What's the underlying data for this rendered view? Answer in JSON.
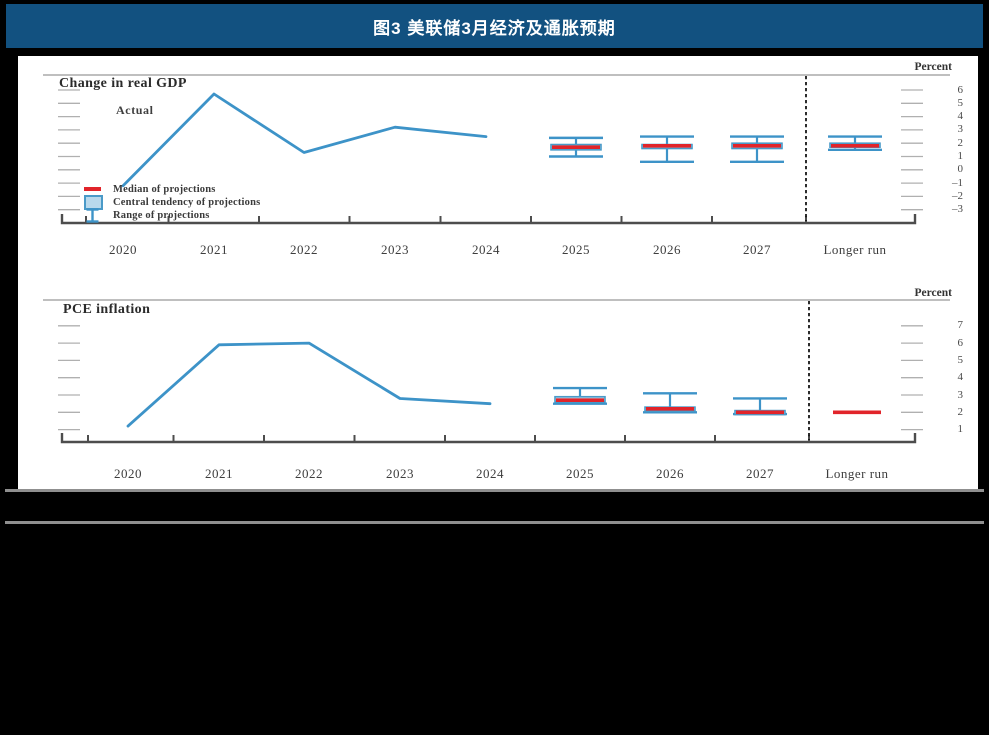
{
  "title_bar": {
    "text": "图3 美联储3月经济及通胀预期",
    "bg_color": "#125180",
    "text_color": "#ffffff"
  },
  "colors": {
    "actual_line": "#3d93c8",
    "central_tendency_fill": "#b9d9ec",
    "central_tendency_border": "#4a9ac8",
    "median": "#e1242a",
    "frame_line": "#999999",
    "axis": "#4d4d4d",
    "tick_dash": "#b0b0b0",
    "separator": "#161616",
    "rule": "#8f8f8f"
  },
  "chart_data": [
    {
      "type": "line+boxwhisker",
      "panel_title": "Change in real GDP",
      "unit_label": "Percent",
      "actual_label": "Actual",
      "x_categories": [
        "2020",
        "2021",
        "2022",
        "2023",
        "2024",
        "2025",
        "2026",
        "2027",
        "Longer run"
      ],
      "actual_series": {
        "name": "Actual",
        "x": [
          "2020",
          "2021",
          "2022",
          "2023",
          "2024"
        ],
        "values": [
          -1.2,
          5.7,
          1.3,
          3.2,
          2.5
        ]
      },
      "projections": [
        {
          "period": "2025",
          "median": 1.7,
          "central_tendency": [
            1.5,
            1.9
          ],
          "range": [
            1.0,
            2.4
          ]
        },
        {
          "period": "2026",
          "median": 1.8,
          "central_tendency": [
            1.6,
            1.9
          ],
          "range": [
            0.6,
            2.5
          ]
        },
        {
          "period": "2027",
          "median": 1.8,
          "central_tendency": [
            1.6,
            2.0
          ],
          "range": [
            0.6,
            2.5
          ]
        },
        {
          "period": "Longer run",
          "median": 1.8,
          "central_tendency": [
            1.7,
            2.0
          ],
          "range": [
            1.5,
            2.5
          ]
        }
      ],
      "y_tick_labels": [
        "6",
        "5",
        "4",
        "3",
        "2",
        "1",
        "0",
        "–1",
        "–2",
        "–3"
      ],
      "y_tick_values": [
        6,
        5,
        4,
        3,
        2,
        1,
        0,
        -1,
        -2,
        -3
      ],
      "ylim": [
        -3.6,
        6.9
      ],
      "legend": [
        "Median of projections",
        "Central tendency of projections",
        "Range of projections"
      ],
      "legend_position": "bottom-left",
      "grid": false
    },
    {
      "type": "line+boxwhisker",
      "panel_title": "PCE inflation",
      "unit_label": "Percent",
      "x_categories": [
        "2020",
        "2021",
        "2022",
        "2023",
        "2024",
        "2025",
        "2026",
        "2027",
        "Longer run"
      ],
      "actual_series": {
        "name": "Actual",
        "x": [
          "2020",
          "2021",
          "2022",
          "2023",
          "2024"
        ],
        "values": [
          1.2,
          5.9,
          6.0,
          2.8,
          2.5
        ]
      },
      "projections": [
        {
          "period": "2025",
          "median": 2.7,
          "central_tendency": [
            2.6,
            2.9
          ],
          "range": [
            2.5,
            3.4
          ]
        },
        {
          "period": "2026",
          "median": 2.2,
          "central_tendency": [
            2.1,
            2.3
          ],
          "range": [
            2.0,
            3.1
          ]
        },
        {
          "period": "2027",
          "median": 2.0,
          "central_tendency": [
            2.0,
            2.1
          ],
          "range": [
            1.9,
            2.8
          ]
        },
        {
          "period": "Longer run",
          "median": 2.0,
          "central_tendency": null,
          "range": null
        }
      ],
      "y_tick_labels": [
        "7",
        "6",
        "5",
        "4",
        "3",
        "2",
        "1"
      ],
      "y_tick_values": [
        7,
        6,
        5,
        4,
        3,
        2,
        1
      ],
      "ylim": [
        0.4,
        7.7
      ],
      "grid": false
    }
  ]
}
